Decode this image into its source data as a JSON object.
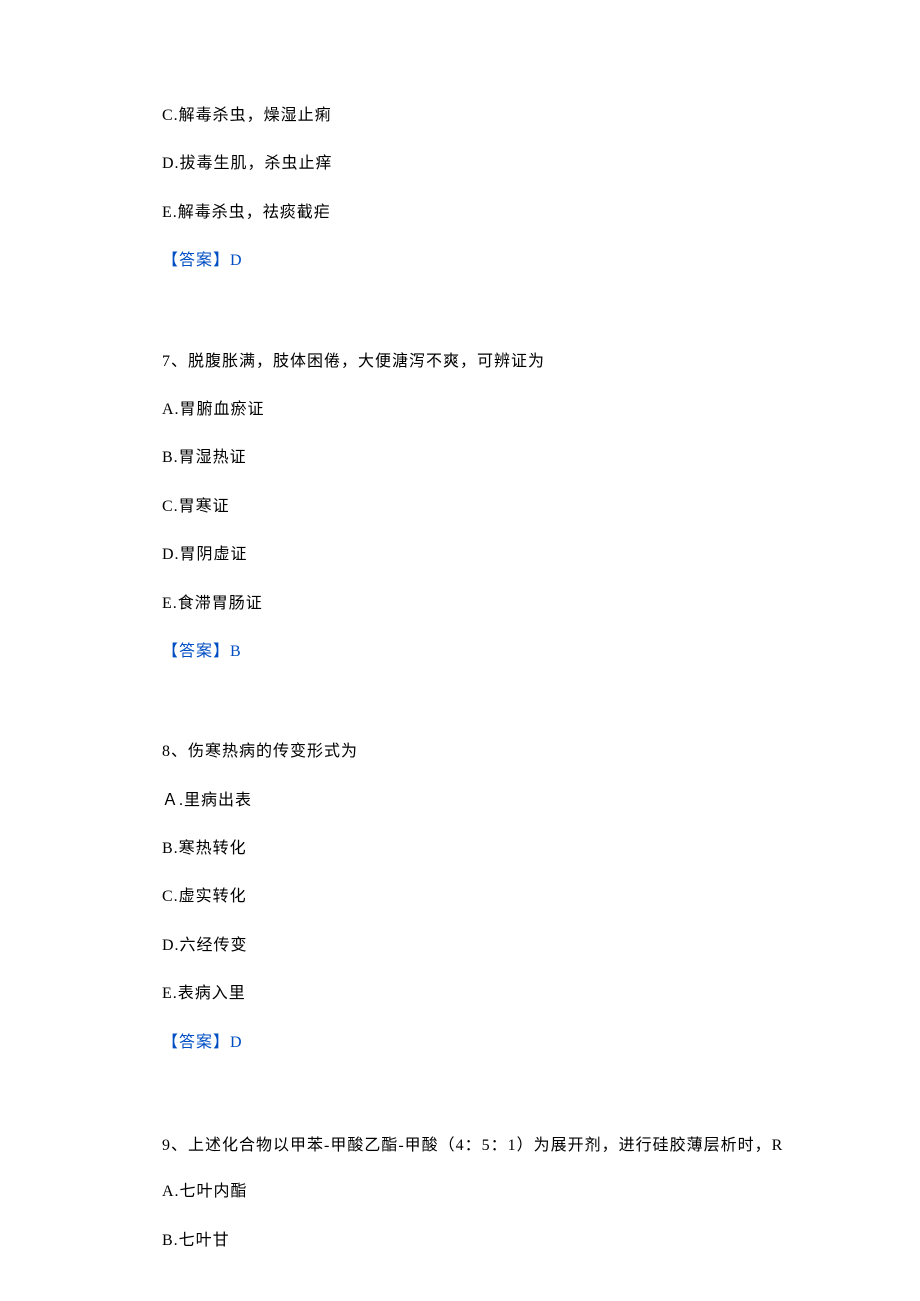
{
  "q6_tail": {
    "options": [
      "C.解毒杀虫，燥湿止痢",
      "D.拔毒生肌，杀虫止痒",
      "E.解毒杀虫，祛痰截疟"
    ],
    "answer": "【答案】D"
  },
  "q7": {
    "question": "7、脱腹胀满，肢体困倦，大便溏泻不爽，可辨证为",
    "options": [
      "A.胃腑血瘀证",
      "B.胃湿热证",
      "C.胃寒证",
      "D.胃阴虚证",
      "E.食滞胃肠证"
    ],
    "answer": "【答案】B"
  },
  "q8": {
    "question": "8、伤寒热病的传变形式为",
    "options": [
      "Ａ.里病出表",
      "B.寒热转化",
      "C.虚实转化",
      "D.六经传变",
      "E.表病入里"
    ],
    "answer": "【答案】D"
  },
  "q9": {
    "question": "9、上述化合物以甲苯-甲酸乙酯-甲酸（4：5：1）为展开剂，进行硅胶薄层析时，R",
    "options": [
      "A.七叶内酯",
      "B.七叶甘"
    ]
  }
}
